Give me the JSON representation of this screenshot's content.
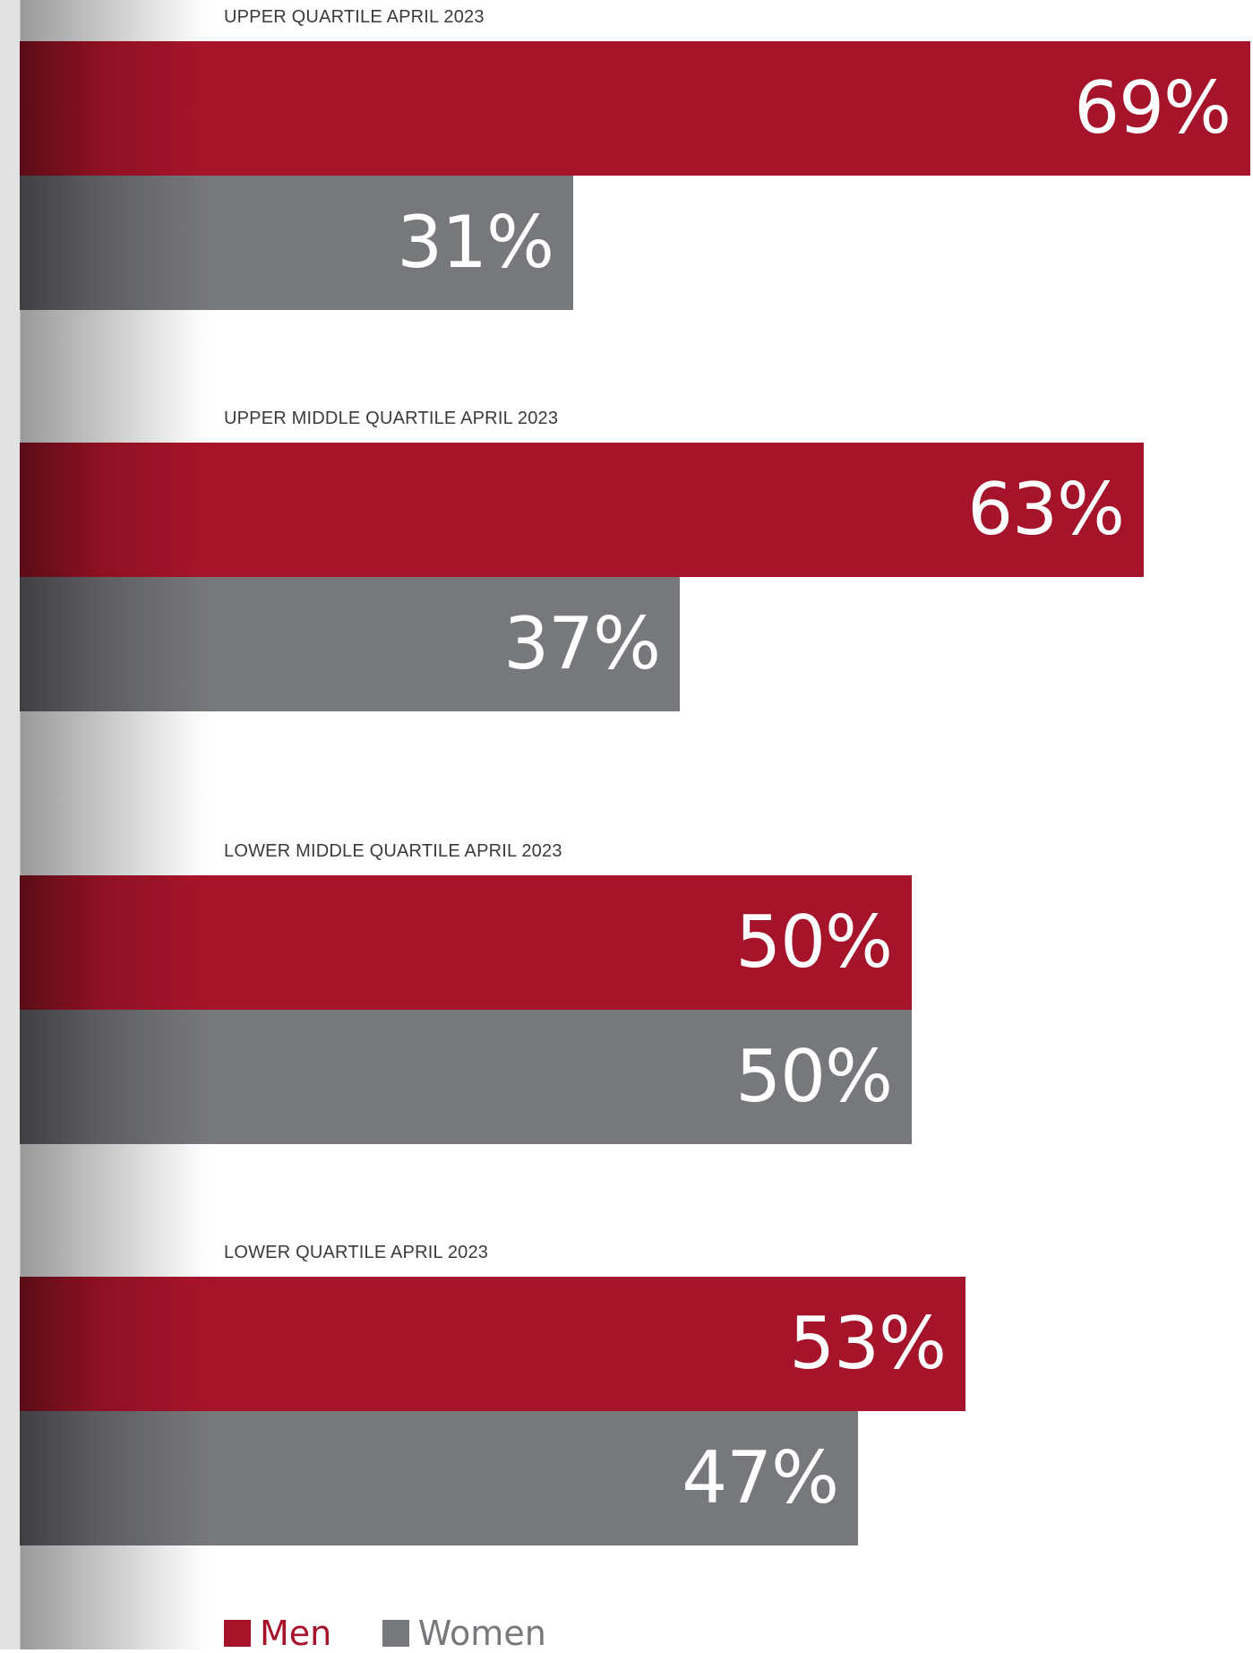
{
  "chart_data": {
    "type": "bar",
    "orientation": "horizontal",
    "xlim": [
      0,
      100
    ],
    "grid": false,
    "legend_placement": "bottom-left",
    "panels": [
      {
        "title": "UPPER QUARTILE APRIL 2023",
        "men": 69,
        "women": 31,
        "men_label": "69%",
        "women_label": "31%"
      },
      {
        "title": "UPPER MIDDLE QUARTILE APRIL 2023",
        "men": 63,
        "women": 37,
        "men_label": "63%",
        "women_label": "37%"
      },
      {
        "title": "LOWER MIDDLE QUARTILE APRIL 2023",
        "men": 50,
        "women": 50,
        "men_label": "50%",
        "women_label": "50%"
      },
      {
        "title": "LOWER QUARTILE APRIL 2023",
        "men": 53,
        "women": 47,
        "men_label": "53%",
        "women_label": "47%"
      }
    ],
    "series": [
      {
        "name": "Men",
        "color": "#a5142b"
      },
      {
        "name": "Women",
        "color": "#77787b"
      }
    ]
  }
}
